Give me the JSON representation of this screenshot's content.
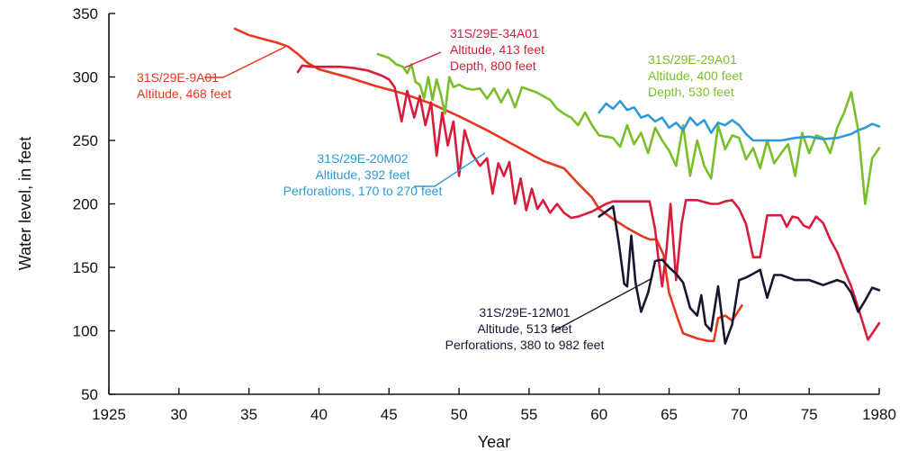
{
  "chart_data": {
    "type": "line",
    "xlabel": "Year",
    "ylabel": "Water level, in feet",
    "xlim": [
      1925,
      1980
    ],
    "ylim": [
      50,
      350
    ],
    "x_ticks": [
      1925,
      1930,
      1935,
      1940,
      1945,
      1950,
      1955,
      1960,
      1965,
      1970,
      1975,
      1980
    ],
    "x_tick_labels": [
      "1925",
      "30",
      "35",
      "40",
      "45",
      "50",
      "55",
      "60",
      "65",
      "70",
      "75",
      "1980"
    ],
    "y_ticks": [
      50,
      100,
      150,
      200,
      250,
      300,
      350
    ],
    "y_tick_labels": [
      "50",
      "100",
      "150",
      "200",
      "250",
      "300",
      "350"
    ],
    "grid": false,
    "series": [
      {
        "name": "31S/29E-9A01",
        "color": "#e8371e",
        "label_lines": [
          "31S/29E-9A01",
          "Altitude, 468 feet"
        ],
        "x": [
          1934.0,
          1935.0,
          1936.0,
          1937.0,
          1937.8,
          1938.5,
          1939.2,
          1940.0,
          1942.0,
          1944.0,
          1946.0,
          1948.0,
          1950.0,
          1952.0,
          1954.0,
          1956.0,
          1957.5,
          1958.5,
          1959.5,
          1960.0,
          1961.0,
          1962.0,
          1963.0,
          1963.6,
          1964.1,
          1964.6,
          1965.0,
          1965.6,
          1966.0,
          1967.0,
          1967.8,
          1968.2,
          1968.5,
          1969.0,
          1969.5,
          1970.2
        ],
        "y": [
          338,
          333,
          330,
          327,
          324,
          318,
          311,
          306,
          300,
          293,
          287,
          279,
          269,
          258,
          246,
          234,
          228,
          216,
          205,
          196,
          188,
          181,
          175,
          172,
          172,
          160,
          130,
          110,
          98,
          94,
          92,
          92,
          110,
          112,
          108,
          120
        ]
      },
      {
        "name": "31S/29E-34A01",
        "color": "#d81c3c",
        "label_lines": [
          "31S/29E-34A01",
          "Altitude, 413 feet",
          "Depth, 800 feet"
        ],
        "x": [
          1938.5,
          1938.8,
          1939.5,
          1941.5,
          1942.5,
          1943.5,
          1944.5,
          1945.0,
          1945.4,
          1945.9,
          1946.3,
          1946.8,
          1947.2,
          1947.6,
          1948.0,
          1948.4,
          1948.8,
          1949.2,
          1949.6,
          1950.0,
          1950.4,
          1950.9,
          1951.5,
          1952.0,
          1952.4,
          1952.8,
          1953.2,
          1953.6,
          1954.0,
          1954.4,
          1954.8,
          1955.2,
          1955.6,
          1956.0,
          1956.5,
          1957.0,
          1957.5,
          1958.0,
          1958.5,
          1959.0,
          1959.5,
          1960.0,
          1960.5,
          1961.0,
          1962.0,
          1963.0,
          1963.6,
          1964.0,
          1964.2,
          1964.5,
          1964.8,
          1965.1,
          1965.5,
          1965.9,
          1966.2,
          1967.0,
          1968.0,
          1968.5,
          1969.0,
          1969.5,
          1970.0,
          1970.5,
          1971.0,
          1971.5,
          1972.0,
          1972.5,
          1973.0,
          1973.4,
          1973.8,
          1974.2,
          1974.6,
          1975.0,
          1975.5,
          1976.0,
          1976.5,
          1977.0,
          1977.5,
          1978.0,
          1978.5,
          1979.2,
          1980.0
        ],
        "y": [
          304,
          309,
          308,
          308,
          307,
          305,
          301,
          298,
          292,
          265,
          289,
          268,
          285,
          262,
          280,
          238,
          272,
          246,
          265,
          222,
          258,
          240,
          230,
          236,
          208,
          232,
          222,
          233,
          200,
          220,
          195,
          212,
          196,
          203,
          193,
          200,
          193,
          189,
          190,
          192,
          194,
          197,
          200,
          202,
          202,
          202,
          202,
          180,
          160,
          135,
          162,
          200,
          140,
          185,
          203,
          203,
          200,
          200,
          202,
          203,
          196,
          184,
          158,
          158,
          191,
          191,
          191,
          182,
          190,
          189,
          183,
          181,
          190,
          185,
          172,
          162,
          148,
          135,
          118,
          93,
          106
        ]
      },
      {
        "name": "31S/29E-29A01",
        "color": "#79bf2b",
        "label_lines": [
          "31S/29E-29A01",
          "Altitude, 400 feet",
          "Depth, 530 feet"
        ],
        "x": [
          1944.2,
          1945.0,
          1945.5,
          1946.0,
          1946.3,
          1946.6,
          1946.9,
          1947.2,
          1947.5,
          1947.8,
          1948.1,
          1948.4,
          1948.7,
          1949.0,
          1949.3,
          1949.6,
          1950.0,
          1950.5,
          1951.0,
          1951.5,
          1952.0,
          1952.5,
          1953.0,
          1953.5,
          1954.0,
          1954.5,
          1955.0,
          1955.5,
          1956.0,
          1956.5,
          1957.0,
          1957.5,
          1958.0,
          1958.5,
          1959.0,
          1959.5,
          1960.0,
          1960.5,
          1961.0,
          1961.5,
          1962.0,
          1962.5,
          1963.0,
          1963.5,
          1964.0,
          1964.5,
          1965.0,
          1965.5,
          1966.0,
          1966.5,
          1967.0,
          1967.5,
          1968.0,
          1968.5,
          1969.0,
          1969.5,
          1970.0,
          1970.5,
          1971.0,
          1971.5,
          1972.0,
          1972.5,
          1973.0,
          1973.5,
          1974.0,
          1974.5,
          1975.0,
          1975.5,
          1976.0,
          1976.5,
          1977.0,
          1977.5,
          1978.0,
          1978.5,
          1979.0,
          1979.5,
          1980.0
        ],
        "y": [
          318,
          315,
          310,
          308,
          303,
          310,
          296,
          294,
          283,
          300,
          282,
          298,
          286,
          271,
          300,
          292,
          294,
          291,
          290,
          291,
          283,
          291,
          280,
          290,
          276,
          292,
          290,
          288,
          285,
          282,
          275,
          271,
          268,
          262,
          272,
          262,
          254,
          253,
          252,
          245,
          262,
          247,
          256,
          240,
          260,
          250,
          242,
          230,
          262,
          222,
          250,
          230,
          220,
          262,
          243,
          254,
          252,
          235,
          244,
          228,
          250,
          232,
          240,
          247,
          222,
          256,
          240,
          254,
          252,
          240,
          260,
          272,
          288,
          258,
          200,
          236,
          244
        ]
      },
      {
        "name": "31S/29E-20M02",
        "color": "#2f9ad6",
        "label_lines": [
          "31S/29E-20M02",
          "Altitude, 392 feet",
          "Perforations, 170 to 270 feet"
        ],
        "x": [
          1960.0,
          1960.5,
          1961.0,
          1961.5,
          1962.0,
          1962.5,
          1963.0,
          1963.5,
          1964.0,
          1964.5,
          1965.0,
          1965.5,
          1966.0,
          1966.5,
          1967.0,
          1967.5,
          1968.0,
          1968.5,
          1969.0,
          1969.5,
          1970.0,
          1970.5,
          1971.0,
          1972.0,
          1973.0,
          1974.0,
          1975.0,
          1976.0,
          1977.0,
          1978.0,
          1978.5,
          1979.0,
          1979.5,
          1980.0
        ],
        "y": [
          272,
          279,
          275,
          281,
          274,
          276,
          268,
          270,
          265,
          268,
          260,
          264,
          258,
          268,
          262,
          266,
          256,
          264,
          262,
          266,
          262,
          255,
          250,
          250,
          250,
          252,
          253,
          251,
          252,
          255,
          258,
          260,
          263,
          261
        ]
      },
      {
        "name": "31S/29E-12M01",
        "color": "#1d1430",
        "label_lines": [
          "31S/29E-12M01",
          "Altitude, 513 feet",
          "Perforations, 380 to 982 feet"
        ],
        "x": [
          1960.0,
          1961.0,
          1961.4,
          1961.8,
          1962.0,
          1962.3,
          1962.6,
          1963.0,
          1963.5,
          1964.0,
          1964.5,
          1965.0,
          1965.5,
          1966.0,
          1966.5,
          1967.0,
          1967.3,
          1967.6,
          1968.0,
          1968.5,
          1969.0,
          1969.5,
          1970.0,
          1970.5,
          1971.0,
          1971.5,
          1972.0,
          1972.5,
          1973.0,
          1973.5,
          1974.0,
          1974.5,
          1975.0,
          1975.5,
          1976.0,
          1976.5,
          1977.0,
          1977.5,
          1978.0,
          1978.5,
          1979.0,
          1979.5,
          1980.0
        ],
        "y": [
          190,
          198,
          170,
          137,
          135,
          175,
          138,
          115,
          130,
          155,
          156,
          150,
          145,
          138,
          118,
          112,
          128,
          105,
          100,
          135,
          90,
          105,
          140,
          142,
          145,
          148,
          126,
          144,
          144,
          142,
          140,
          140,
          140,
          138,
          136,
          138,
          140,
          138,
          130,
          115,
          124,
          134,
          132
        ]
      }
    ]
  }
}
